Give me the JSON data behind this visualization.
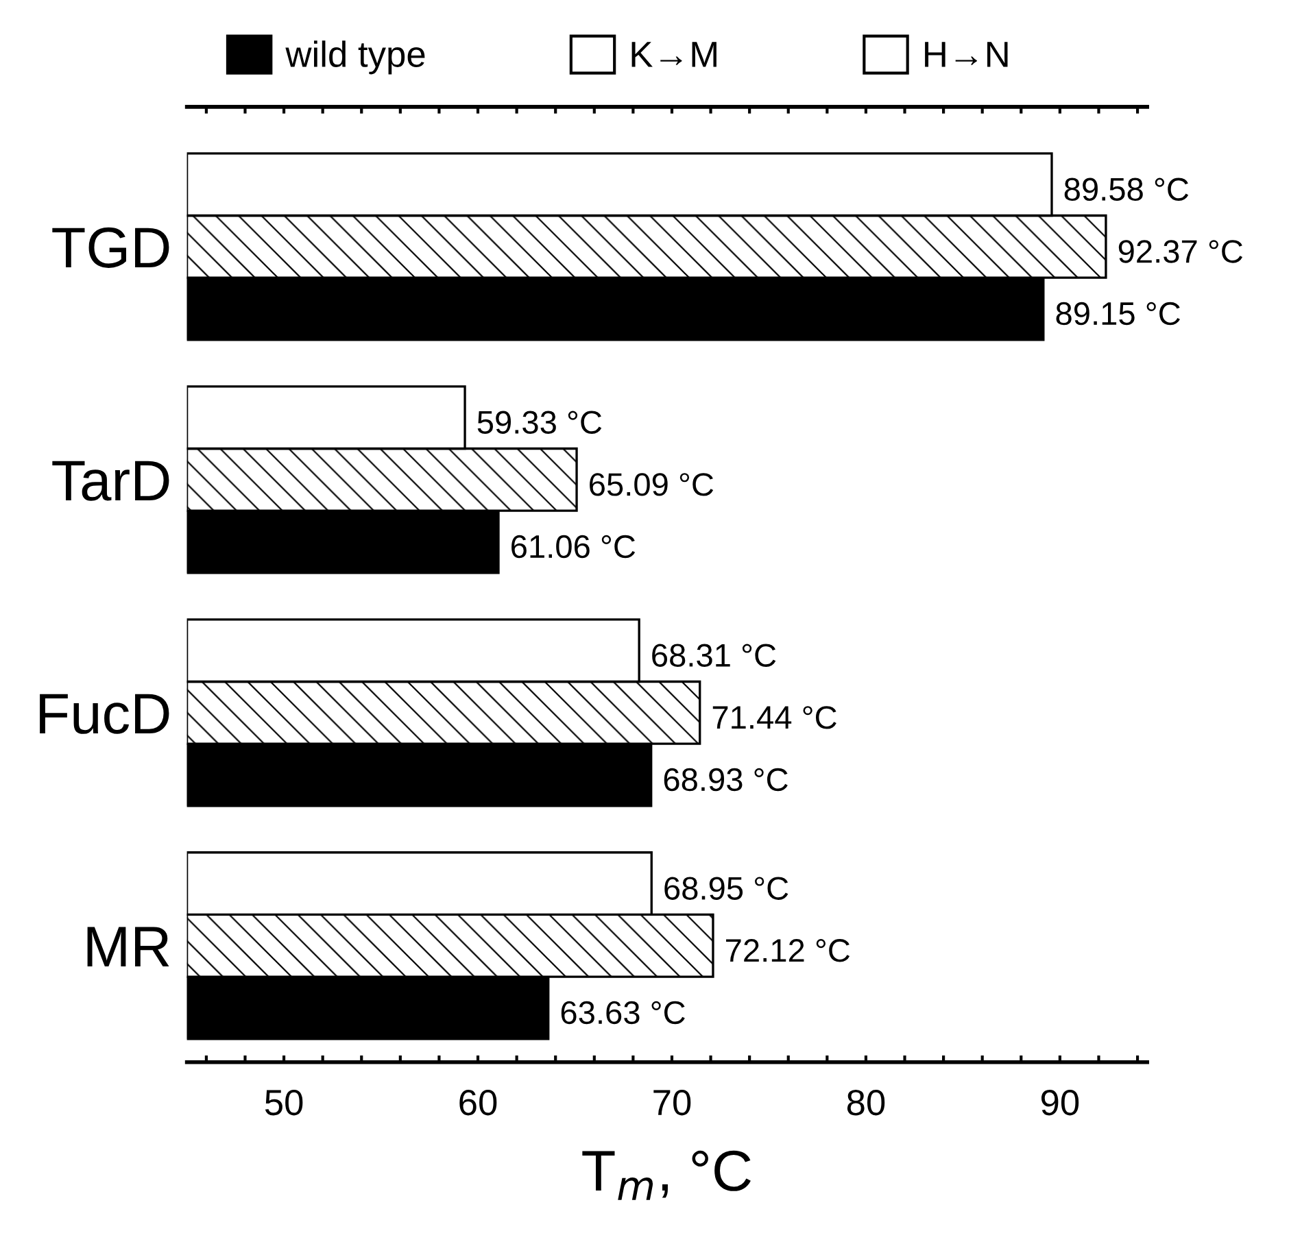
{
  "chart_data": {
    "type": "bar",
    "orientation": "horizontal",
    "xlabel": "T$_{m}$, °C",
    "categories": [
      "TGD",
      "TarD",
      "FucD",
      "MR"
    ],
    "series": [
      {
        "name": "wild type",
        "color": "#000000",
        "values": [
          89.15,
          61.06,
          68.93,
          63.63
        ],
        "value_labels": [
          "89.15 °C",
          "61.06 °C",
          "68.93 °C",
          "63.63 °C"
        ]
      },
      {
        "name": "K→M",
        "color": "#ffffff",
        "values": [
          92.37,
          65.09,
          71.44,
          72.12
        ],
        "value_labels": [
          "92.37 °C",
          "65.09 °C",
          "71.44 °C",
          "72.12 °C"
        ]
      },
      {
        "name": "H→N",
        "color": "#ffffff",
        "values": [
          89.58,
          59.33,
          68.31,
          68.95
        ],
        "value_labels": [
          "89.58 °C",
          "59.33 °C",
          "68.31 °C",
          "68.95 °C"
        ]
      }
    ],
    "xlim": [
      45,
      94.5
    ],
    "xticks": [
      {
        "value": 46,
        "label": null
      },
      {
        "value": 48,
        "label": null
      },
      50,
      {
        "value": 52,
        "label": null
      },
      {
        "value": 54,
        "label": null
      },
      {
        "value": 56,
        "label": null
      },
      {
        "value": 58,
        "label": null
      },
      60,
      {
        "value": 62,
        "label": null
      },
      {
        "value": 64,
        "label": null
      },
      {
        "value": 66,
        "label": null
      },
      {
        "value": 68,
        "label": null
      },
      70,
      {
        "value": 72,
        "label": null
      },
      {
        "value": 74,
        "label": null
      },
      {
        "value": 76,
        "label": null
      },
      {
        "value": 78,
        "label": null
      },
      80,
      {
        "value": 82,
        "label": null
      },
      {
        "value": 84,
        "label": null
      },
      {
        "value": 86,
        "label": null
      },
      {
        "value": 88,
        "label": null
      },
      90,
      {
        "value": 92,
        "label": null
      },
      {
        "value": 94,
        "label": null
      }
    ],
    "grid": false,
    "legend": "top"
  }
}
